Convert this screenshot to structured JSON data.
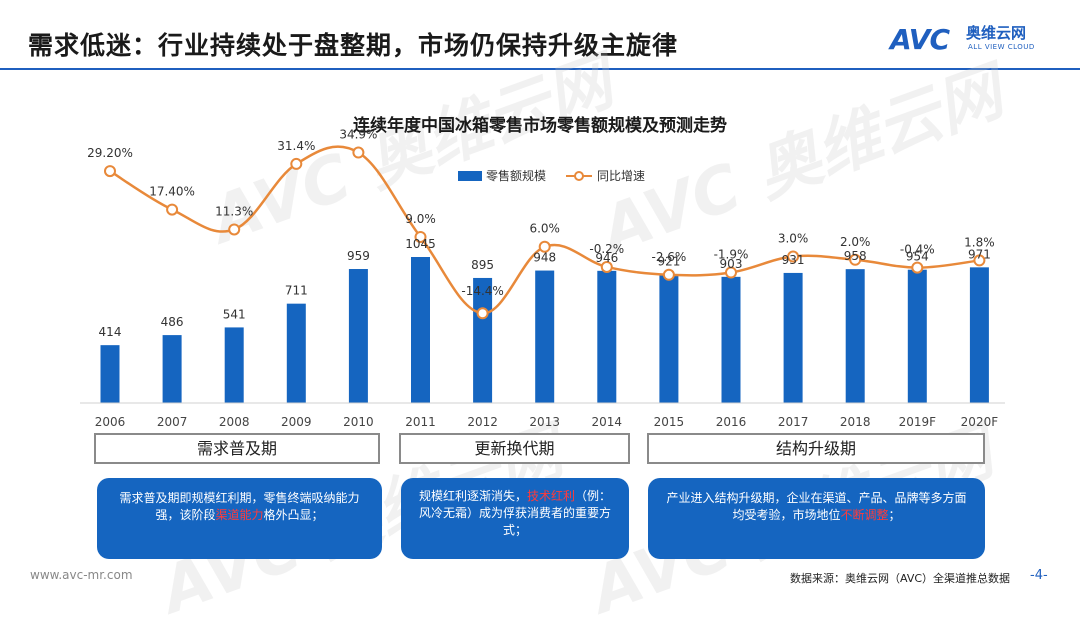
{
  "header": {
    "title": "需求低迷：行业持续处于盘整期，市场仍保持升级主旋律",
    "logo_mark": "AVC",
    "logo_cn": "奥维云网",
    "logo_en": "ALL VIEW CLOUD"
  },
  "chart_data": {
    "type": "bar",
    "title": "连续年度中国冰箱零售市场零售额规模及预测走势",
    "categories": [
      "2006",
      "2007",
      "2008",
      "2009",
      "2010",
      "2011",
      "2012",
      "2013",
      "2014",
      "2015",
      "2016",
      "2017",
      "2018",
      "2019F",
      "2020F"
    ],
    "series": [
      {
        "name": "零售额规模",
        "type": "bar",
        "values": [
          414,
          486,
          541,
          711,
          959,
          1045,
          895,
          948,
          946,
          921,
          903,
          931,
          958,
          954,
          971
        ],
        "labels": [
          "414",
          "486",
          "541",
          "711",
          "959",
          "1045",
          "895",
          "948",
          "946",
          "921",
          "903",
          "931",
          "958",
          "954",
          "971"
        ]
      },
      {
        "name": "同比增速",
        "type": "line",
        "values": [
          29.2,
          17.4,
          11.3,
          31.4,
          34.9,
          9.0,
          -14.4,
          6.0,
          -0.2,
          -2.6,
          -1.9,
          3.0,
          2.0,
          -0.4,
          1.8
        ],
        "labels": [
          "29.20%",
          "17.40%",
          "11.3%",
          "31.4%",
          "34.9%",
          "9.0%",
          "-14.4%",
          "6.0%",
          "-0.2%",
          "-2.6%",
          "-1.9%",
          "3.0%",
          "2.0%",
          "-0.4%",
          "1.8%"
        ]
      }
    ],
    "colors": {
      "bar": "#1565c0",
      "line": "#e8893a"
    },
    "legend_position": "top-right",
    "grid": false
  },
  "periods": [
    {
      "label": "需求普及期"
    },
    {
      "label": "更新换代期"
    },
    {
      "label": "结构升级期"
    }
  ],
  "descriptions": {
    "d1": {
      "pre": "需求普及期即规模红利期，零售终端吸纳能力强，该阶段",
      "hl": "渠道能力",
      "post": "格外凸显；"
    },
    "d2": {
      "pre": "规模红利逐渐消失，",
      "hl": "技术红利",
      "post": "（例：风冷无霜）成为俘获消费者的重要方式；"
    },
    "d3": {
      "pre": "产业进入结构升级期，企业在渠道、产品、品牌等多方面均受考验，市场地位",
      "hl": "不断调整",
      "post": "；"
    }
  },
  "footer": {
    "url": "www.avc-mr.com",
    "source": "数据来源：奥维云网（AVC）全渠道推总数据",
    "page": "-4-"
  },
  "watermark": {
    "text": "AVC 奥维云网"
  }
}
